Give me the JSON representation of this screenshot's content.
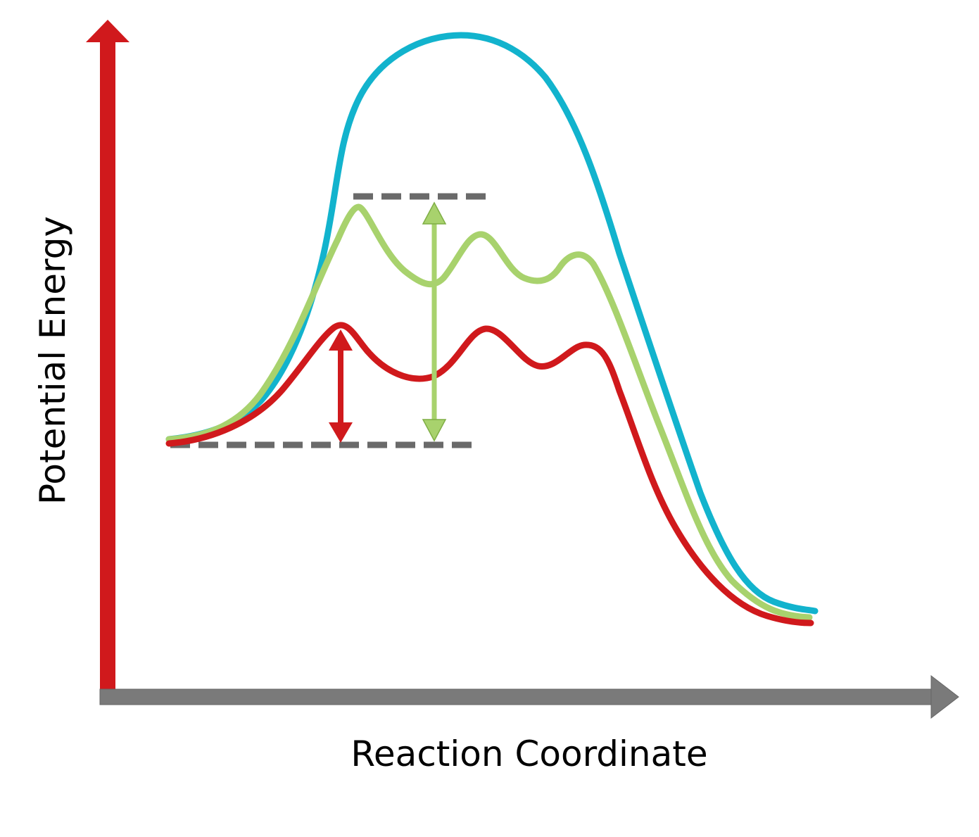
{
  "axes": {
    "y_label": "Potential Energy",
    "x_label": "Reaction Coordinate"
  },
  "colors": {
    "y_axis": "#d0191c",
    "x_axis": "#7a7a7a",
    "uncatalyzed_curve": "#12b3cd",
    "catalyzed_curve_1": "#a8d26d",
    "catalyzed_curve_2": "#d0191c",
    "reference_line": "#6a6a6a"
  }
}
